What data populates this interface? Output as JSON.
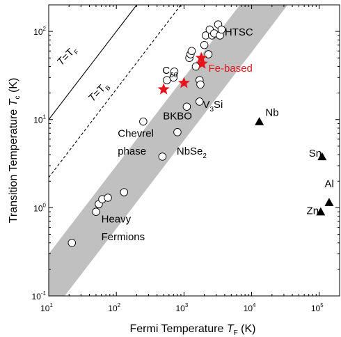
{
  "chart_data": {
    "type": "scatter",
    "x_scale": "log",
    "y_scale": "log",
    "xlim": [
      10,
      200000
    ],
    "ylim": [
      0.1,
      200
    ],
    "grid": false,
    "xlabel": {
      "main": "Fermi Temperature ",
      "var": "T",
      "sub": "F",
      "unit": " (K)"
    },
    "ylabel": {
      "main": "Transition Temperature ",
      "var": "T",
      "sub": "c",
      "unit": " (K)"
    },
    "x_ticks": [
      {
        "value": 10,
        "base": "10",
        "exp": "1"
      },
      {
        "value": 100,
        "base": "10",
        "exp": "2"
      },
      {
        "value": 1000,
        "base": "10",
        "exp": "3"
      },
      {
        "value": 10000,
        "base": "10",
        "exp": "4"
      },
      {
        "value": 100000,
        "base": "10",
        "exp": "5"
      }
    ],
    "y_ticks": [
      {
        "value": 0.1,
        "base": "10",
        "exp": "-1"
      },
      {
        "value": 1,
        "base": "10",
        "exp": "0"
      },
      {
        "value": 10,
        "base": "10",
        "exp": "1"
      },
      {
        "value": 100,
        "base": "10",
        "exp": "2"
      }
    ],
    "band": {
      "lower": [
        [
          10,
          0.058
        ],
        [
          100,
          0.58
        ],
        [
          1000,
          5.8
        ],
        [
          10000,
          58
        ],
        [
          34000,
          200
        ]
      ],
      "upper": [
        [
          10,
          0.3
        ],
        [
          100,
          3
        ],
        [
          1000,
          30
        ],
        [
          6700,
          200
        ]
      ],
      "color": "#c0c0c0"
    },
    "reference_lines": [
      {
        "label_var": "T",
        "label_eq": "=T",
        "label_sub": "F",
        "style": "solid",
        "points": [
          [
            10,
            10
          ],
          [
            200,
            200
          ]
        ]
      },
      {
        "label_var": "T",
        "label_eq": "=T",
        "label_sub": "B",
        "style": "dashed",
        "points": [
          [
            10,
            2.2
          ],
          [
            900,
            200
          ]
        ]
      }
    ],
    "series": [
      {
        "marker": "circle",
        "color": "#ffffff",
        "points": [
          [
            22,
            0.4
          ],
          [
            50,
            0.9
          ],
          [
            55,
            1.1
          ],
          [
            62,
            1.25
          ],
          [
            75,
            1.3
          ],
          [
            130,
            1.5
          ],
          [
            250,
            9.5
          ],
          [
            480,
            3.8
          ],
          [
            800,
            7.2
          ],
          [
            560,
            28
          ],
          [
            700,
            30
          ],
          [
            720,
            35
          ],
          [
            1100,
            14
          ],
          [
            1700,
            16
          ],
          [
            1700,
            28
          ],
          [
            1750,
            25
          ],
          [
            1500,
            40
          ],
          [
            1200,
            50
          ],
          [
            1250,
            55
          ],
          [
            1300,
            60
          ],
          [
            2000,
            70
          ],
          [
            2300,
            55
          ],
          [
            2100,
            90
          ],
          [
            2600,
            90
          ],
          [
            2400,
            105
          ],
          [
            2800,
            95
          ],
          [
            3200,
            120
          ],
          [
            3400,
            90
          ],
          [
            3600,
            105
          ]
        ]
      },
      {
        "name": "Fe-based",
        "marker": "star",
        "color": "#e8141c",
        "points": [
          [
            500,
            22
          ],
          [
            1000,
            26
          ],
          [
            1800,
            50
          ],
          [
            1850,
            43
          ]
        ]
      },
      {
        "marker": "triangle",
        "color": "#000000",
        "points": [
          [
            13000,
            9.5
          ],
          [
            110000,
            3.8
          ],
          [
            140000,
            1.15
          ],
          [
            105000,
            0.9
          ]
        ]
      }
    ],
    "annotations": [
      {
        "text": "HTSC",
        "at": [
          4000,
          90
        ],
        "anchor": "start"
      },
      {
        "text": "C",
        "sub": "60",
        "at": [
          480,
          33
        ],
        "anchor": "start"
      },
      {
        "text": "Fe-based",
        "at": [
          2300,
          35
        ],
        "anchor": "start",
        "color": "#e8141c"
      },
      {
        "text": "V",
        "sub": "3",
        "tail": "Si",
        "at": [
          1900,
          13.5
        ],
        "anchor": "start"
      },
      {
        "text": "BKBO",
        "at": [
          490,
          10
        ],
        "anchor": "start"
      },
      {
        "text": "Nb",
        "at": [
          16000,
          11
        ],
        "anchor": "start"
      },
      {
        "text": "Chevrel",
        "at": [
          105,
          6.4
        ],
        "anchor": "start"
      },
      {
        "text": "phase",
        "at": [
          105,
          4.0
        ],
        "anchor": "start"
      },
      {
        "text": "NbSe",
        "sub": "2",
        "at": [
          780,
          4.0
        ],
        "anchor": "start"
      },
      {
        "text": "Sn",
        "at": [
          70000,
          3.8
        ],
        "anchor": "start"
      },
      {
        "text": "Al",
        "at": [
          120000,
          1.7
        ],
        "anchor": "start"
      },
      {
        "text": "Zn",
        "at": [
          65000,
          0.85
        ],
        "anchor": "start"
      },
      {
        "text": "Heavy",
        "at": [
          60,
          0.68
        ],
        "anchor": "start"
      },
      {
        "text": "Fermions",
        "at": [
          60,
          0.43
        ],
        "anchor": "start"
      }
    ]
  }
}
